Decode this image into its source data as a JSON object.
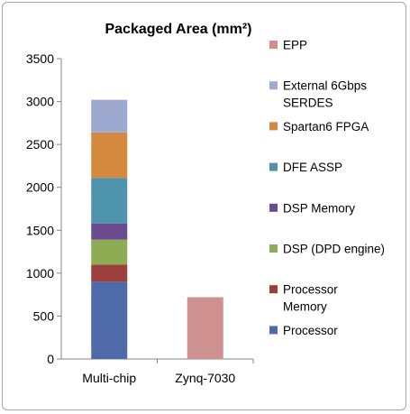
{
  "chart_data": {
    "type": "bar",
    "stacked": true,
    "title": "Packaged Area (mm²)",
    "xlabel": "",
    "ylabel": "",
    "categories": [
      "Multi-chip",
      "Zynq-7030"
    ],
    "ylim": [
      0,
      3500
    ],
    "yticks": [
      0,
      500,
      1000,
      1500,
      2000,
      2500,
      3000,
      3500
    ],
    "grid": false,
    "legend_position": "right",
    "series": [
      {
        "name": "Processor",
        "color": "#4f6aa8",
        "values": [
          900,
          0
        ]
      },
      {
        "name": "Processor Memory",
        "color": "#9b3f3d",
        "values": [
          200,
          0
        ]
      },
      {
        "name": "DSP (DPD engine)",
        "color": "#8eac53",
        "values": [
          290,
          0
        ]
      },
      {
        "name": "DSP Memory",
        "color": "#6a4c8e",
        "values": [
          190,
          0
        ]
      },
      {
        "name": "DFE ASSP",
        "color": "#4e93ac",
        "values": [
          530,
          0
        ]
      },
      {
        "name": "Spartan6 FPGA",
        "color": "#d38a3e",
        "values": [
          530,
          0
        ]
      },
      {
        "name": "External 6Gbps SERDES",
        "color": "#9ea9d0",
        "values": [
          380,
          0
        ]
      },
      {
        "name": "EPP",
        "color": "#cf9190",
        "values": [
          0,
          720
        ]
      }
    ],
    "legend_order": [
      {
        "label_lines": [
          "EPP"
        ],
        "series": 7
      },
      {
        "label_lines": [
          "External 6Gbps",
          "SERDES"
        ],
        "series": 6
      },
      {
        "label_lines": [
          "Spartan6 FPGA"
        ],
        "series": 5
      },
      {
        "label_lines": [
          "DFE ASSP"
        ],
        "series": 4
      },
      {
        "label_lines": [
          "DSP Memory"
        ],
        "series": 3
      },
      {
        "label_lines": [
          "DSP (DPD engine)"
        ],
        "series": 2
      },
      {
        "label_lines": [
          "Processor",
          "Memory"
        ],
        "series": 1
      },
      {
        "label_lines": [
          "Processor"
        ],
        "series": 0
      }
    ]
  }
}
